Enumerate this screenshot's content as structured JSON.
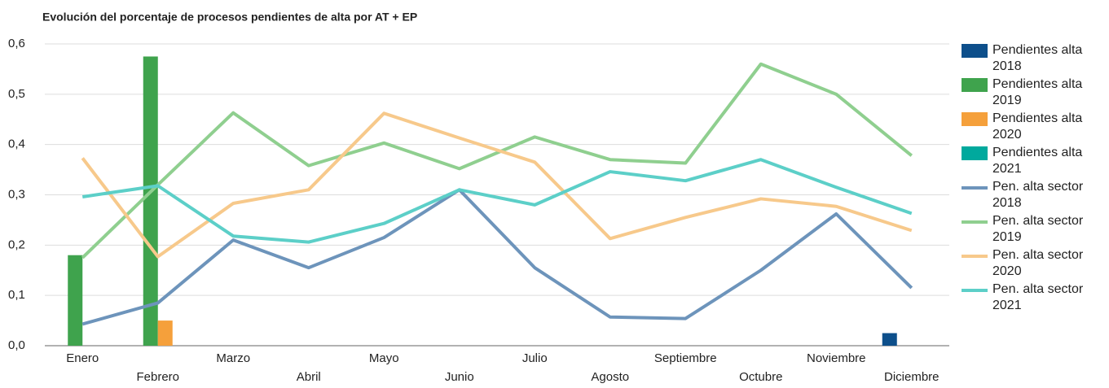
{
  "chart_data": {
    "type": "bar_line",
    "title": "Evolución del porcentaje de procesos pendientes de alta por AT + EP",
    "categories": [
      "Enero",
      "Febrero",
      "Marzo",
      "Abril",
      "Mayo",
      "Junio",
      "Julio",
      "Agosto",
      "Septiembre",
      "Octubre",
      "Noviembre",
      "Diciembre"
    ],
    "ylim": [
      0,
      0.6
    ],
    "yticks": [
      {
        "value": 0,
        "label": "0,0"
      },
      {
        "value": 0.1,
        "label": "0,1"
      },
      {
        "value": 0.2,
        "label": "0,2"
      },
      {
        "value": 0.3,
        "label": "0,3"
      },
      {
        "value": 0.4,
        "label": "0,4"
      },
      {
        "value": 0.5,
        "label": "0,5"
      },
      {
        "value": 0.6,
        "label": "0,6"
      }
    ],
    "grid": true,
    "legend": "right",
    "series": [
      {
        "name": "Pendientes alta 2018",
        "type": "bar",
        "color": "#0d4f8b",
        "values": [
          null,
          null,
          null,
          null,
          null,
          null,
          null,
          null,
          null,
          null,
          null,
          0.025
        ]
      },
      {
        "name": "Pendientes alta 2019",
        "type": "bar",
        "color": "#3fa34d",
        "values": [
          0.18,
          0.575,
          null,
          null,
          null,
          null,
          null,
          null,
          null,
          null,
          null,
          null
        ]
      },
      {
        "name": "Pendientes alta 2020",
        "type": "bar",
        "color": "#f5a03b",
        "values": [
          null,
          0.05,
          null,
          null,
          null,
          null,
          null,
          null,
          null,
          null,
          null,
          null
        ]
      },
      {
        "name": "Pendientes alta 2021",
        "type": "bar",
        "color": "#00a99d",
        "values": [
          null,
          null,
          null,
          null,
          null,
          null,
          null,
          null,
          null,
          null,
          null,
          null
        ]
      },
      {
        "name": "Pen. alta sector 2018",
        "type": "line",
        "color": "#6d94bb",
        "values": [
          0.043,
          0.085,
          0.21,
          0.155,
          0.215,
          0.31,
          0.155,
          0.057,
          0.054,
          0.15,
          0.262,
          0.115
        ]
      },
      {
        "name": "Pen. alta sector 2019",
        "type": "line",
        "color": "#8fcf8f",
        "values": [
          0.175,
          0.32,
          0.463,
          0.358,
          0.403,
          0.352,
          0.415,
          0.37,
          0.363,
          0.56,
          0.5,
          0.378
        ]
      },
      {
        "name": "Pen. alta sector 2020",
        "type": "line",
        "color": "#f7c98b",
        "values": [
          0.373,
          0.177,
          0.283,
          0.31,
          0.462,
          0.413,
          0.365,
          0.213,
          0.255,
          0.292,
          0.277,
          0.229
        ]
      },
      {
        "name": "Pen. alta sector 2021",
        "type": "line",
        "color": "#5ccfc8",
        "values": [
          0.296,
          0.318,
          0.218,
          0.206,
          0.243,
          0.31,
          0.28,
          0.346,
          0.328,
          0.37,
          0.315,
          0.263
        ]
      }
    ]
  }
}
